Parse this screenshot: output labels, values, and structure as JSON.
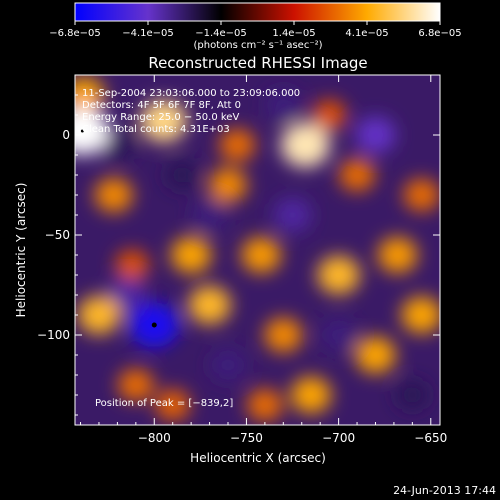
{
  "chart_data": {
    "type": "heatmap",
    "title": "Reconstructed RHESSI Image",
    "xlabel": "Heliocentric X (arcsec)",
    "ylabel": "Heliocentric Y (arcsec)",
    "xlim": [
      -843,
      -645
    ],
    "ylim": [
      -145,
      30
    ],
    "x_ticks": [
      -800,
      -750,
      -700,
      -650
    ],
    "x_tick_labels": [
      "−800",
      "−750",
      "−700",
      "−650"
    ],
    "y_ticks": [
      0,
      -50,
      -100
    ],
    "y_tick_labels": [
      "0",
      "−50",
      "−100"
    ],
    "colorbar": {
      "range": [
        -6.8e-05,
        6.8e-05
      ],
      "tick_labels": [
        "−6.8e−05",
        "−4.1e−05",
        "−1.4e−05",
        "1.4e−05",
        "4.1e−05",
        "6.8e−05"
      ],
      "unit_label": "(photons cm⁻² s⁻¹ asec⁻²)",
      "colors": [
        "#0000ff",
        "#6633cc",
        "#000000",
        "#cc1100",
        "#ffaa00",
        "#ffffff"
      ]
    },
    "annotations": [
      "11-Sep-2004 23:03:06.000 to 23:09:06.000",
      "Detectors: 4F 5F 6F 7F 8F, Att 0",
      "Energy Range: 25.0 − 50.0 keV",
      "Clean     Total counts: 4.31E+03"
    ],
    "peak_label": "Position of Peak = [−839,2]",
    "peak_position": [
      -839,
      2
    ],
    "min_marker": [
      -800,
      -95
    ],
    "blobs": [
      {
        "x": -795,
        "y": 7,
        "v": 5.5e-05
      },
      {
        "x": -718,
        "y": -5,
        "v": 6e-05
      },
      {
        "x": -839,
        "y": 2,
        "v": 6.8e-05
      },
      {
        "x": -838,
        "y": 20,
        "v": 4e-05
      },
      {
        "x": -822,
        "y": -30,
        "v": 3.5e-05
      },
      {
        "x": -830,
        "y": -90,
        "v": 4.5e-05
      },
      {
        "x": -810,
        "y": -125,
        "v": 3e-05
      },
      {
        "x": -812,
        "y": -65,
        "v": 2.5e-05
      },
      {
        "x": -780,
        "y": -60,
        "v": 4e-05
      },
      {
        "x": -770,
        "y": -85,
        "v": 4.5e-05
      },
      {
        "x": -760,
        "y": -25,
        "v": 3.5e-05
      },
      {
        "x": -755,
        "y": -5,
        "v": 3e-05
      },
      {
        "x": -742,
        "y": -60,
        "v": 3.8e-05
      },
      {
        "x": -730,
        "y": -100,
        "v": 3.5e-05
      },
      {
        "x": -715,
        "y": -130,
        "v": 4e-05
      },
      {
        "x": -700,
        "y": -70,
        "v": 4.5e-05
      },
      {
        "x": -690,
        "y": -20,
        "v": 3e-05
      },
      {
        "x": -680,
        "y": -110,
        "v": 4e-05
      },
      {
        "x": -668,
        "y": -60,
        "v": 3.8e-05
      },
      {
        "x": -655,
        "y": -90,
        "v": 4e-05
      },
      {
        "x": -655,
        "y": -30,
        "v": 3e-05
      },
      {
        "x": -705,
        "y": 10,
        "v": 2.5e-05
      },
      {
        "x": -740,
        "y": -135,
        "v": 3e-05
      },
      {
        "x": -790,
        "y": -135,
        "v": 2.8e-05
      },
      {
        "x": -800,
        "y": -95,
        "v": -6e-05
      },
      {
        "x": -815,
        "y": -80,
        "v": -3.5e-05
      },
      {
        "x": -770,
        "y": -40,
        "v": -3e-05
      },
      {
        "x": -725,
        "y": -40,
        "v": -3.5e-05
      },
      {
        "x": -700,
        "y": -100,
        "v": -3e-05
      },
      {
        "x": -760,
        "y": -115,
        "v": -3e-05
      },
      {
        "x": -680,
        "y": 0,
        "v": -4e-05
      },
      {
        "x": -730,
        "y": 15,
        "v": -3e-05
      },
      {
        "x": -820,
        "y": -5,
        "v": -2.5e-05
      },
      {
        "x": -660,
        "y": -130,
        "v": -2.5e-05
      },
      {
        "x": -785,
        "y": -20,
        "v": -2.5e-05
      }
    ]
  },
  "footer": {
    "timestamp": "24-Jun-2013 17:44"
  }
}
